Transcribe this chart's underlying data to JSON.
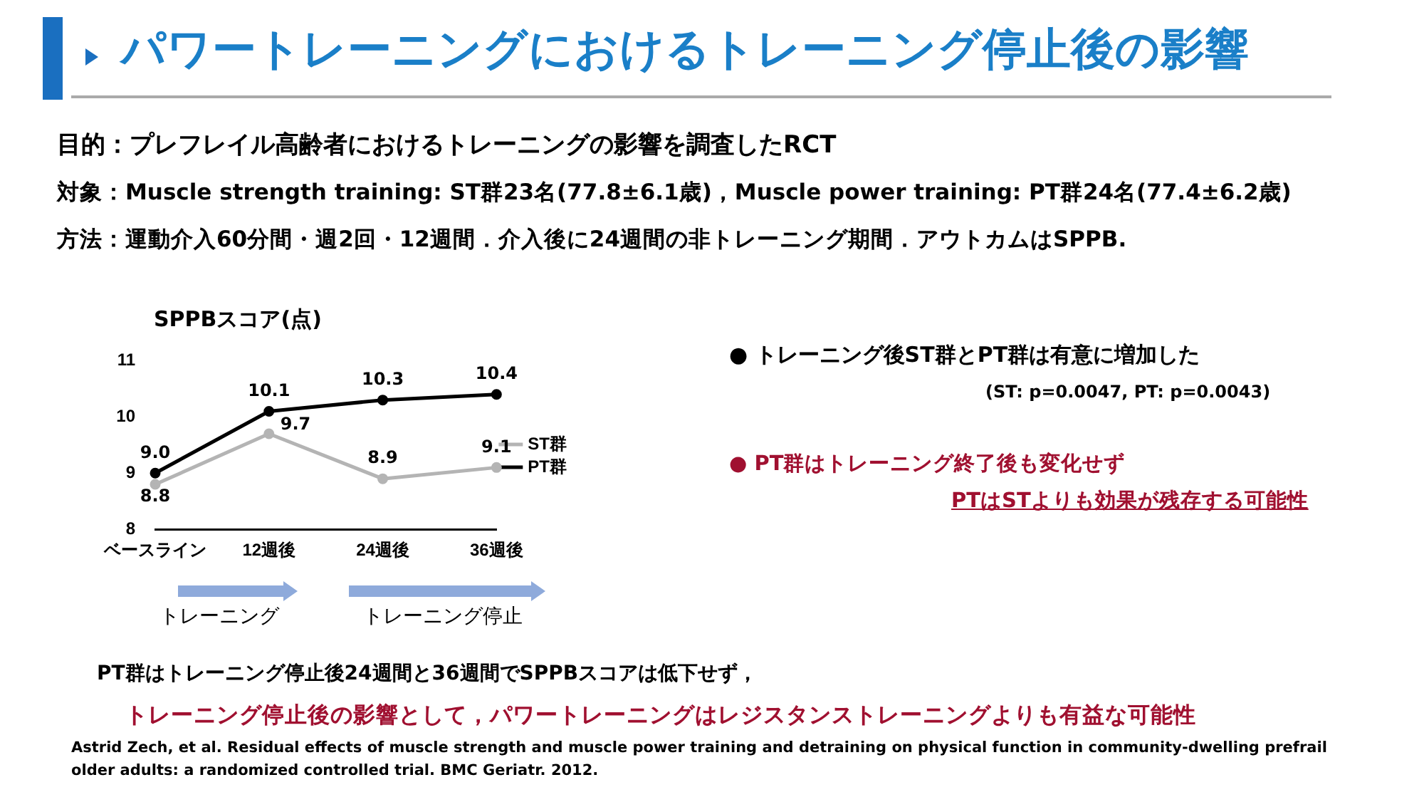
{
  "chart_data": {
    "type": "line",
    "title": "パワートレーニングにおけるトレーニング停止後の影響",
    "ylabel": "SPPBスコア(点)",
    "categories": [
      "ベースライン",
      "12週後",
      "24週後",
      "36週後"
    ],
    "series": [
      {
        "name": "ST群",
        "color": "#b4b4b4",
        "values": [
          8.8,
          9.7,
          8.9,
          9.1
        ],
        "value_labels": [
          "8.8",
          "9.7",
          "8.9",
          "9.1"
        ]
      },
      {
        "name": "PT群",
        "color": "#000000",
        "values": [
          9.0,
          10.1,
          10.3,
          10.4
        ],
        "value_labels": [
          "9.0",
          "10.1",
          "10.3",
          "10.4"
        ]
      }
    ],
    "ylim": [
      8,
      11
    ],
    "yticks": [
      8,
      9,
      10,
      11
    ],
    "grid": false,
    "legend": "right",
    "marker": "circle",
    "line_style": "solid",
    "annotations": [
      "目的：プレフレイル高齢者におけるトレーニングの影響を調査したRCT",
      "対象：Muscle strength training: ST群23名(77.8±6.1歳)，Muscle power training: PT群24名(77.4±6.2歳)",
      "方法：運動介入60分間・週2回・12週間．介入後に24週間の非トレーニング期間．アウトカムはSPPB.",
      "●  トレーニング後ST群とPT群は有意に増加した",
      "(ST: p=0.0047, PT: p=0.0043)",
      "●  PT群はトレーニング終了後も変化せず",
      "PTはSTよりも効果が残存する可能性",
      "トレーニング",
      "トレーニング停止",
      "PT群はトレーニング停止後24週間と36週間でSPPBスコアは低下せず，",
      "トレーニング停止後の影響として，パワートレーニングはレジスタンストレーニングよりも有益な可能性",
      "Astrid Zech, et al. Residual effects of muscle strength and muscle power training and detraining on physical function in community-dwelling prefrail older adults: a randomized controlled trial. BMC Geriatr. 2012."
    ]
  }
}
